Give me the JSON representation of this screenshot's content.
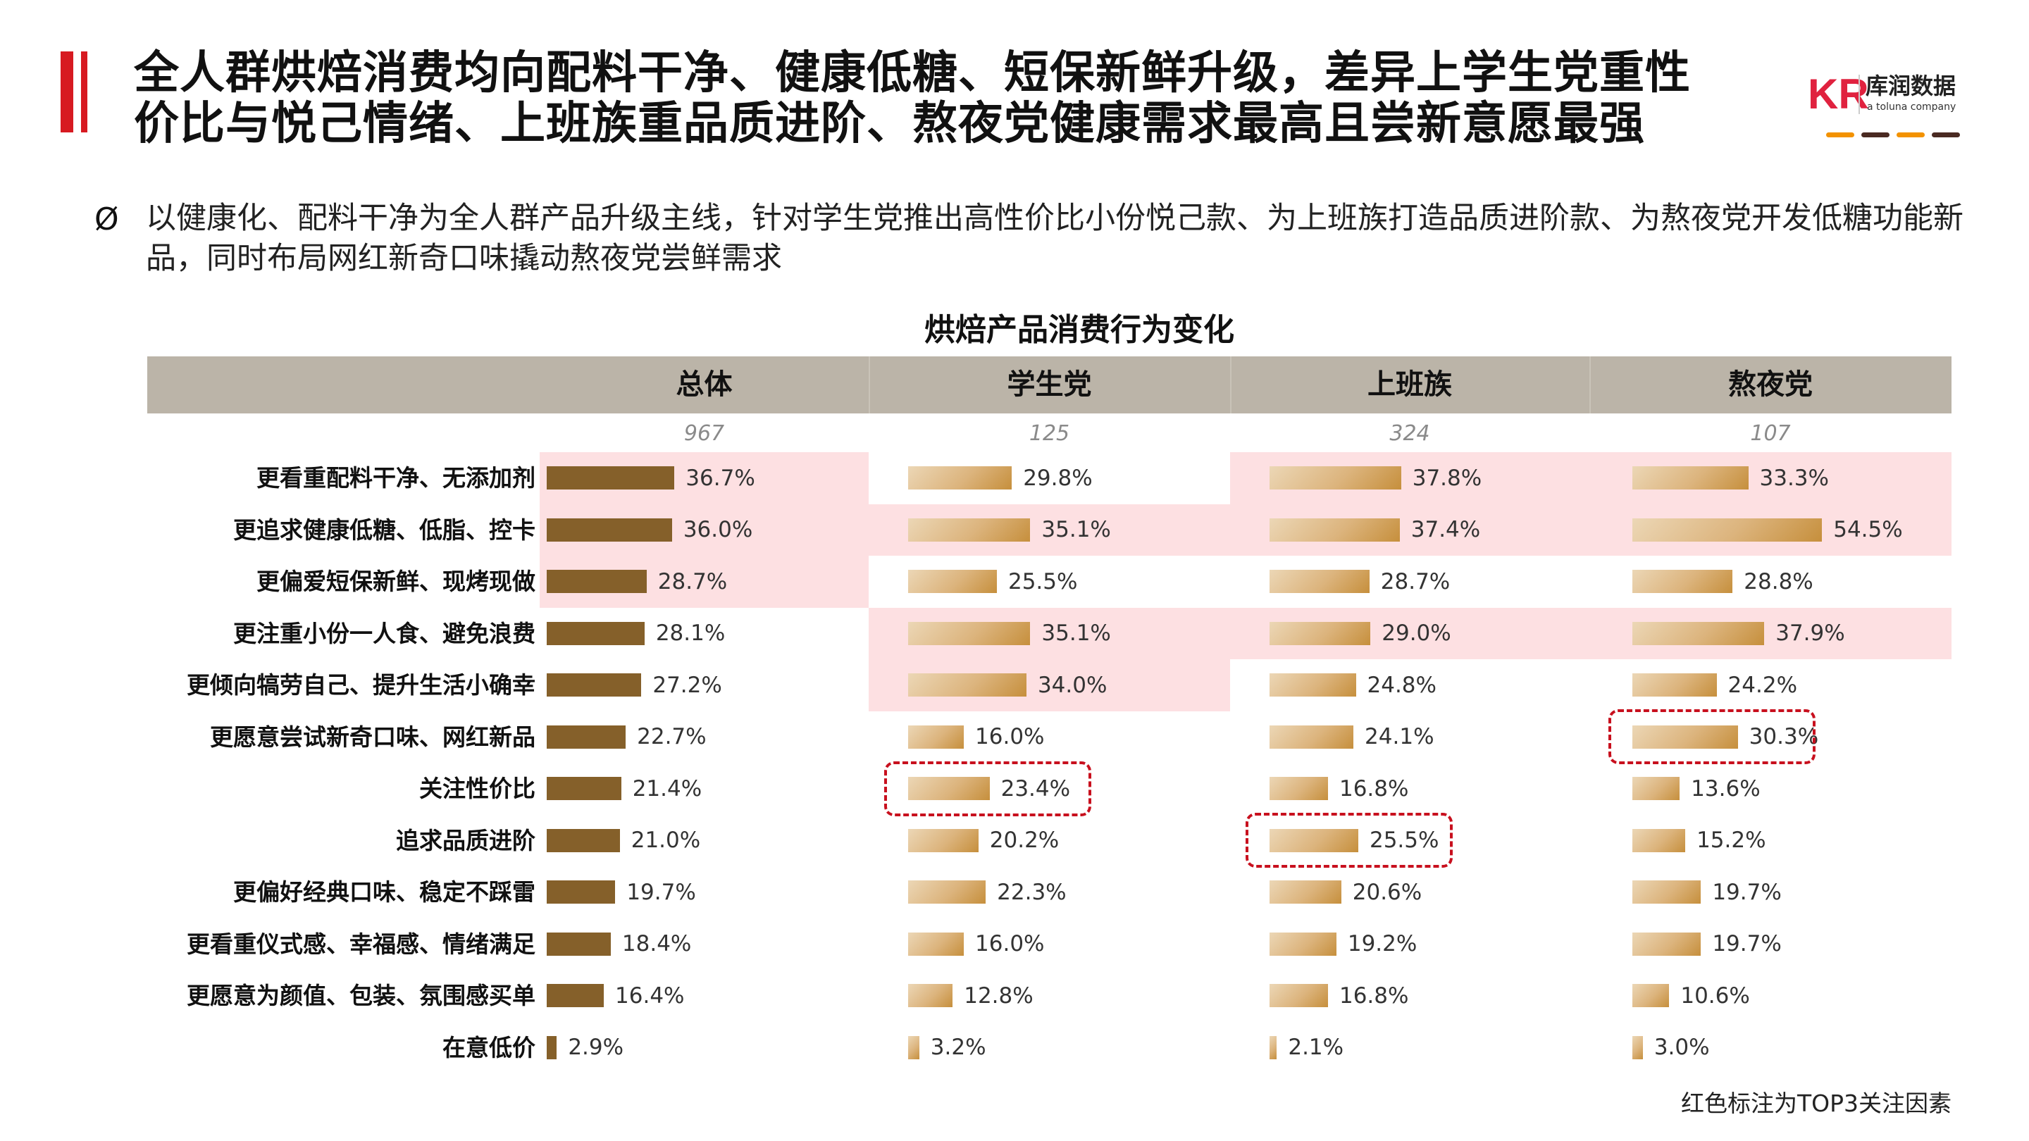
{
  "header": {
    "title_line1": "全人群烘焙消费均向配料干净、健康低糖、短保新鲜升级，差异上学生党重性",
    "title_line2": "价比与悦己情绪、上班族重品质进阶、熬夜党健康需求最高且尝新意愿最强",
    "logo_mark": "KR",
    "logo_cn": "库润数据",
    "logo_en": "a toluna company"
  },
  "colors": {
    "accent_red": "#d71a21",
    "dash_orange": "#f39200",
    "dash_brown": "#4a2a22",
    "top3_bg": "#fde0e2",
    "overall_bar": "#85602a"
  },
  "bullet": {
    "icon": "Ø",
    "text": "以健康化、配料干净为全人群产品升级主线，针对学生党推出高性价比小份悦己款、为上班族打造品质进阶款、为熬夜党开发低糖功能新品，同时布局网红新奇口味撬动熬夜党尝鲜需求"
  },
  "chart_data": {
    "type": "bar",
    "title": "烘焙产品消费行为变化",
    "unit": "%",
    "categories": [
      "更看重配料干净、无添加剂",
      "更追求健康低糖、低脂、控卡",
      "更偏爱短保新鲜、现烤现做",
      "更注重小份一人食、避免浪费",
      "更倾向犒劳自己、提升生活小确幸",
      "更愿意尝试新奇口味、网红新品",
      "关注性价比",
      "追求品质进阶",
      "更偏好经典口味、稳定不踩雷",
      "更看重仪式感、幸福感、情绪满足",
      "更愿意为颜值、包装、氛围感买单",
      "在意低价"
    ],
    "series": [
      {
        "name": "总体",
        "sample": "967",
        "values": [
          36.7,
          36.0,
          28.7,
          28.1,
          27.2,
          22.7,
          21.4,
          21.0,
          19.7,
          18.4,
          16.4,
          2.9
        ],
        "labels": [
          "36.7%",
          "36.0%",
          "28.7%",
          "28.1%",
          "27.2%",
          "22.7%",
          "21.4%",
          "21.0%",
          "19.7%",
          "18.4%",
          "16.4%",
          "2.9%"
        ],
        "top3": [
          0,
          1,
          2
        ],
        "dashed": []
      },
      {
        "name": "学生党",
        "sample": "125",
        "values": [
          29.8,
          35.1,
          25.5,
          35.1,
          34.0,
          16.0,
          23.4,
          20.2,
          22.3,
          16.0,
          12.8,
          3.2
        ],
        "labels": [
          "29.8%",
          "35.1%",
          "25.5%",
          "35.1%",
          "34.0%",
          "16.0%",
          "23.4%",
          "20.2%",
          "22.3%",
          "16.0%",
          "12.8%",
          "3.2%"
        ],
        "top3": [
          1,
          3,
          4
        ],
        "dashed": [
          6
        ]
      },
      {
        "name": "上班族",
        "sample": "324",
        "values": [
          37.8,
          37.4,
          28.7,
          29.0,
          24.8,
          24.1,
          16.8,
          25.5,
          20.6,
          19.2,
          16.8,
          2.1
        ],
        "labels": [
          "37.8%",
          "37.4%",
          "28.7%",
          "29.0%",
          "24.8%",
          "24.1%",
          "16.8%",
          "25.5%",
          "20.6%",
          "19.2%",
          "16.8%",
          "2.1%"
        ],
        "top3": [
          0,
          1,
          3
        ],
        "dashed": [
          7
        ]
      },
      {
        "name": "熬夜党",
        "sample": "107",
        "values": [
          33.3,
          54.5,
          28.8,
          37.9,
          24.2,
          30.3,
          13.6,
          15.2,
          19.7,
          19.7,
          10.6,
          3.0
        ],
        "labels": [
          "33.3%",
          "54.5%",
          "28.8%",
          "37.9%",
          "24.2%",
          "30.3%",
          "13.6%",
          "15.2%",
          "19.7%",
          "19.7%",
          "10.6%",
          "3.0%"
        ],
        "top3": [
          0,
          1,
          3
        ],
        "dashed": [
          5
        ]
      }
    ]
  },
  "footnote": "红色标注为TOP3关注因素"
}
